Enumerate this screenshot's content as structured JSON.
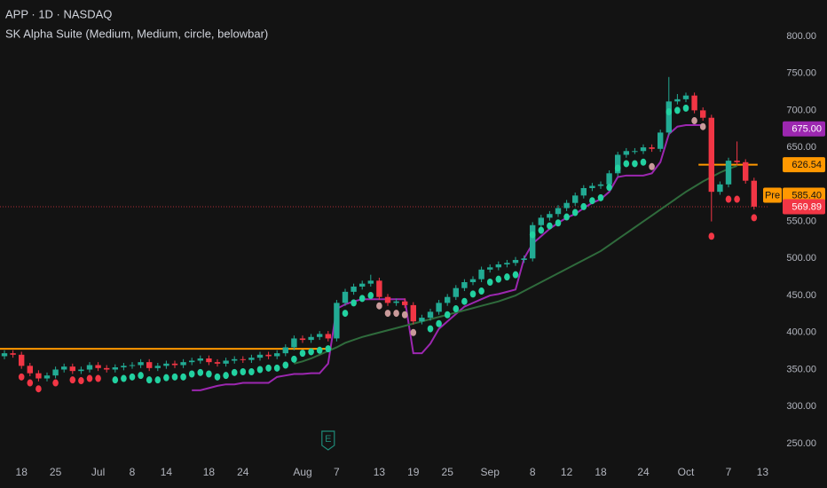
{
  "chart_data": {
    "type": "candlestick",
    "title": "APP · 1D · NASDAQ",
    "subtitle": "SK Alpha Suite (Medium, Medium, circle, belowbar)",
    "categories": [
      null,
      null,
      "18",
      null,
      null,
      null,
      "25",
      null,
      null,
      null,
      null,
      "Jul",
      null,
      null,
      null,
      "8",
      null,
      null,
      null,
      "14",
      null,
      null,
      null,
      null,
      "18",
      null,
      null,
      null,
      "24",
      null,
      null,
      null,
      null,
      null,
      null,
      "Aug",
      null,
      null,
      null,
      "7",
      null,
      null,
      null,
      null,
      "13",
      null,
      null,
      null,
      "19",
      null,
      null,
      null,
      "25",
      null,
      null,
      null,
      null,
      "Sep",
      null,
      null,
      null,
      null,
      "8",
      null,
      null,
      null,
      "12",
      null,
      null,
      null,
      "18",
      null,
      null,
      null,
      null,
      "24",
      null,
      null,
      null,
      null,
      "Oct",
      null,
      null,
      null,
      null,
      "7",
      null,
      null,
      null,
      "13"
    ],
    "open": [
      368,
      372,
      370,
      355,
      345,
      338,
      342,
      350,
      354,
      348,
      350,
      356,
      352,
      350,
      353,
      355,
      356,
      360,
      352,
      355,
      358,
      356,
      360,
      362,
      365,
      360,
      358,
      362,
      364,
      363,
      366,
      370,
      368,
      372,
      380,
      392,
      390,
      394,
      398,
      392,
      440,
      455,
      462,
      466,
      470,
      448,
      440,
      442,
      437,
      415,
      420,
      428,
      440,
      448,
      460,
      468,
      472,
      485,
      488,
      492,
      494,
      498,
      500,
      545,
      555,
      560,
      568,
      575,
      585,
      595,
      598,
      600,
      615,
      640,
      645,
      645,
      650,
      648,
      670,
      712,
      715,
      720,
      700,
      690,
      590,
      600,
      632,
      630,
      605,
      null
    ],
    "high": [
      376,
      376,
      374,
      359,
      349,
      346,
      354,
      358,
      358,
      354,
      360,
      360,
      356,
      357,
      359,
      360,
      364,
      364,
      359,
      362,
      362,
      364,
      366,
      369,
      369,
      364,
      366,
      368,
      368,
      370,
      374,
      374,
      376,
      384,
      396,
      396,
      398,
      402,
      402,
      444,
      459,
      466,
      470,
      478,
      474,
      452,
      446,
      446,
      441,
      424,
      432,
      444,
      452,
      464,
      472,
      476,
      489,
      492,
      496,
      498,
      502,
      504,
      549,
      559,
      564,
      572,
      579,
      589,
      599,
      602,
      604,
      619,
      644,
      649,
      649,
      654,
      654,
      674,
      745,
      722,
      724,
      724,
      704,
      694,
      604,
      636,
      658,
      634,
      609,
      null
    ],
    "low": [
      364,
      366,
      351,
      341,
      334,
      334,
      338,
      346,
      344,
      344,
      346,
      348,
      346,
      346,
      349,
      351,
      352,
      348,
      348,
      351,
      352,
      352,
      356,
      358,
      356,
      354,
      354,
      358,
      359,
      359,
      362,
      364,
      364,
      368,
      376,
      386,
      386,
      390,
      388,
      388,
      436,
      451,
      458,
      462,
      444,
      436,
      436,
      433,
      411,
      411,
      416,
      424,
      436,
      444,
      456,
      464,
      468,
      481,
      484,
      488,
      490,
      494,
      496,
      541,
      551,
      556,
      564,
      571,
      581,
      591,
      594,
      596,
      611,
      636,
      641,
      641,
      644,
      644,
      666,
      708,
      711,
      696,
      686,
      550,
      586,
      596,
      626,
      601,
      566,
      null
    ],
    "close": [
      372,
      370,
      355,
      345,
      338,
      342,
      350,
      354,
      348,
      350,
      356,
      352,
      350,
      353,
      355,
      356,
      360,
      352,
      355,
      358,
      356,
      360,
      362,
      365,
      360,
      358,
      362,
      364,
      363,
      366,
      370,
      368,
      372,
      380,
      392,
      390,
      394,
      398,
      392,
      440,
      455,
      462,
      466,
      470,
      448,
      440,
      442,
      437,
      415,
      420,
      428,
      440,
      448,
      460,
      468,
      472,
      485,
      488,
      492,
      494,
      498,
      500,
      545,
      555,
      560,
      568,
      575,
      585,
      595,
      598,
      600,
      615,
      640,
      645,
      645,
      650,
      648,
      670,
      712,
      715,
      720,
      700,
      690,
      590,
      600,
      632,
      630,
      605,
      570,
      null
    ],
    "up_color": "#22ab94",
    "down_color": "#f23645",
    "lines": [
      {
        "color": "#9c27b0",
        "values": [
          null,
          null,
          null,
          null,
          null,
          null,
          null,
          null,
          null,
          null,
          null,
          null,
          null,
          null,
          null,
          null,
          null,
          null,
          null,
          null,
          null,
          null,
          322,
          322,
          325,
          328,
          330,
          330,
          332,
          332,
          332,
          332,
          340,
          342,
          344,
          344,
          345,
          345,
          358,
          432,
          438,
          442,
          445,
          445,
          445,
          445,
          445,
          445,
          372,
          372,
          385,
          405,
          415,
          425,
          435,
          440,
          445,
          450,
          452,
          455,
          458,
          500,
          520,
          530,
          540,
          548,
          555,
          560,
          568,
          575,
          580,
          590,
          610,
          612,
          612,
          612,
          615,
          630,
          668,
          678,
          680,
          680,
          680,
          null,
          null,
          null,
          null,
          null,
          null,
          null
        ]
      },
      {
        "color": "#2f6b3c",
        "values": [
          null,
          null,
          null,
          null,
          null,
          null,
          null,
          null,
          null,
          null,
          null,
          null,
          null,
          null,
          null,
          null,
          null,
          null,
          null,
          null,
          null,
          null,
          null,
          null,
          null,
          null,
          null,
          null,
          null,
          null,
          null,
          null,
          null,
          null,
          358,
          361,
          365,
          370,
          375,
          380,
          386,
          390,
          394,
          397,
          400,
          403,
          406,
          409,
          412,
          415,
          418,
          421,
          424,
          427,
          430,
          433,
          436,
          439,
          442,
          446,
          450,
          456,
          462,
          468,
          474,
          480,
          486,
          492,
          498,
          504,
          510,
          518,
          526,
          534,
          542,
          550,
          558,
          566,
          574,
          582,
          590,
          597,
          604,
          610,
          616,
          621,
          625,
          null,
          null,
          null
        ]
      }
    ],
    "dots": {
      "values": [
        null,
        null,
        340,
        332,
        324,
        null,
        332,
        null,
        336,
        335,
        338,
        338,
        null,
        336,
        338,
        340,
        342,
        336,
        336,
        339,
        340,
        340,
        344,
        346,
        344,
        340,
        342,
        346,
        347,
        347,
        350,
        352,
        352,
        356,
        364,
        372,
        374,
        376,
        378,
        null,
        426,
        440,
        446,
        450,
        436,
        426,
        426,
        424,
        400,
        null,
        405,
        412,
        424,
        432,
        442,
        452,
        456,
        468,
        472,
        475,
        478,
        null,
        532,
        538,
        544,
        548,
        556,
        562,
        570,
        578,
        582,
        596,
        622,
        628,
        628,
        630,
        624,
        null,
        698,
        700,
        703,
        686,
        678,
        530,
        null,
        580,
        580,
        null,
        555,
        null
      ],
      "colors": [
        null,
        null,
        "#f23645",
        "#f23645",
        "#f23645",
        null,
        "#f23645",
        null,
        "#f23645",
        "#f23645",
        "#f23645",
        "#f23645",
        null,
        "#22d1a0",
        "#22d1a0",
        "#22d1a0",
        "#22d1a0",
        "#22d1a0",
        "#22d1a0",
        "#22d1a0",
        "#22d1a0",
        "#22d1a0",
        "#22d1a0",
        "#22d1a0",
        "#22d1a0",
        "#22d1a0",
        "#22d1a0",
        "#22d1a0",
        "#22d1a0",
        "#22d1a0",
        "#22d1a0",
        "#22d1a0",
        "#22d1a0",
        "#22d1a0",
        "#22d1a0",
        "#22d1a0",
        "#22d1a0",
        "#22d1a0",
        "#22d1a0",
        null,
        "#22d1a0",
        "#22d1a0",
        "#22d1a0",
        "#22d1a0",
        "#c99a9a",
        "#c99a9a",
        "#c99a9a",
        "#c99a9a",
        "#c99a9a",
        null,
        "#22d1a0",
        "#22d1a0",
        "#22d1a0",
        "#22d1a0",
        "#22d1a0",
        "#22d1a0",
        "#22d1a0",
        "#22d1a0",
        "#22d1a0",
        "#22d1a0",
        "#22d1a0",
        null,
        "#22d1a0",
        "#22d1a0",
        "#22d1a0",
        "#22d1a0",
        "#22d1a0",
        "#22d1a0",
        "#22d1a0",
        "#22d1a0",
        "#22d1a0",
        "#22d1a0",
        "#22d1a0",
        "#22d1a0",
        "#22d1a0",
        "#22d1a0",
        "#c99a9a",
        null,
        "#22d1a0",
        "#22d1a0",
        "#22d1a0",
        "#c99a9a",
        "#c99a9a",
        "#f23645",
        null,
        "#f23645",
        "#f23645",
        null,
        "#f23645",
        null
      ]
    },
    "levels": [
      {
        "value": 378,
        "from": 0,
        "to": 38,
        "color": "#ff9800"
      },
      {
        "value": 626.54,
        "from": 82,
        "to": 88,
        "color": "#ff9800"
      }
    ],
    "price_labels": [
      {
        "value": 675,
        "label": "675.00",
        "color": "#9c27b0",
        "text_color": "#ffffff"
      },
      {
        "value": 626.54,
        "label": "626.54",
        "color": "#ff9800",
        "text_color": "#131313"
      },
      {
        "value": 585.4,
        "label": "585.40",
        "tag": "Pre",
        "color": "#ff9800",
        "text_color": "#131313"
      },
      {
        "value": 569.89,
        "label": "569.89",
        "color": "#f23645",
        "text_color": "#ffffff",
        "dotted_line": true
      }
    ],
    "earnings_marker": {
      "label": "E",
      "index": 38,
      "color": "#1f8a78"
    },
    "ylim": [
      226,
      849
    ],
    "yticks": [
      {
        "value": 250,
        "label": "250.00"
      },
      {
        "value": 300,
        "label": "300.00"
      },
      {
        "value": 350,
        "label": "350.00"
      },
      {
        "value": 400,
        "label": "400.00"
      },
      {
        "value": 450,
        "label": "450.00"
      },
      {
        "value": 500,
        "label": "500.00"
      },
      {
        "value": 550,
        "label": "550.00"
      },
      {
        "value": 650,
        "label": "650.00"
      },
      {
        "value": 700,
        "label": "700.00"
      },
      {
        "value": 750,
        "label": "750.00"
      },
      {
        "value": 800,
        "label": "800.00"
      }
    ],
    "grid": false
  }
}
